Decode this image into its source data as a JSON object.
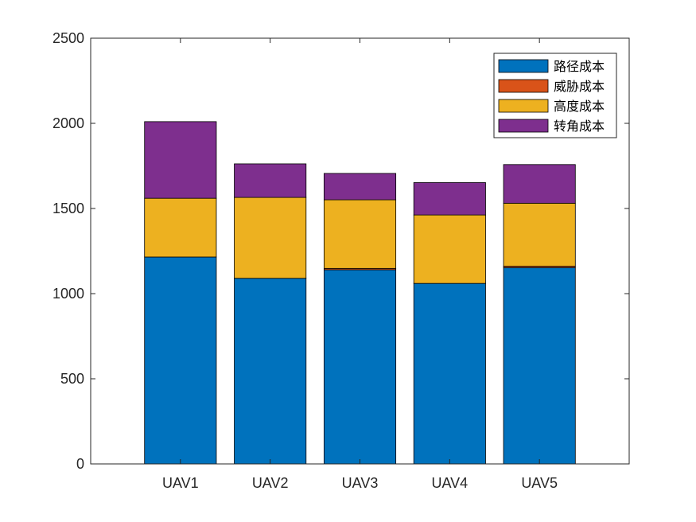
{
  "chart_data": {
    "type": "bar",
    "stacked": true,
    "categories": [
      "UAV1",
      "UAV2",
      "UAV3",
      "UAV4",
      "UAV5"
    ],
    "series": [
      {
        "name": "路径成本",
        "color": "#0072BD",
        "values": [
          1215,
          1090,
          1140,
          1060,
          1153
        ]
      },
      {
        "name": "威胁成本",
        "color": "#D95319",
        "values": [
          0,
          0,
          8,
          0,
          8
        ]
      },
      {
        "name": "高度成本",
        "color": "#EDB120",
        "values": [
          345,
          475,
          403,
          402,
          370
        ]
      },
      {
        "name": "转角成本",
        "color": "#7E2F8E",
        "values": [
          450,
          197,
          155,
          190,
          227
        ]
      }
    ],
    "ylim": [
      0,
      2500
    ],
    "yticks": [
      0,
      500,
      1000,
      1500,
      2000,
      2500
    ],
    "xlabel": "",
    "ylabel": "",
    "title": "",
    "grid": false,
    "legend_position": "top-right"
  }
}
